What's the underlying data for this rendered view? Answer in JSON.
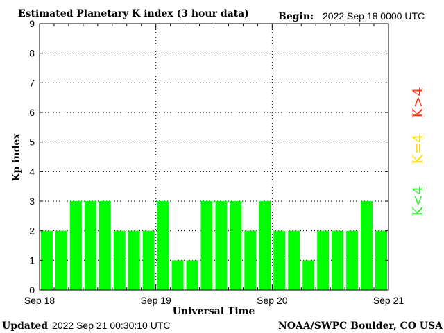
{
  "chart_data": {
    "type": "bar",
    "title": "Estimated Planetary K index (3 hour data)",
    "begin_label": "Begin:",
    "begin_value": "2022 Sep 18 0000 UTC",
    "ylabel": "Kp index",
    "xlabel": "Universal Time",
    "ylim": [
      0,
      9
    ],
    "yticks": [
      "0",
      "1",
      "2",
      "3",
      "4",
      "5",
      "6",
      "7",
      "8",
      "9"
    ],
    "xlim": [
      0,
      72
    ],
    "xticks": [
      {
        "hour": 0,
        "label": "Sep 18"
      },
      {
        "hour": 24,
        "label": "Sep 19"
      },
      {
        "hour": 48,
        "label": "Sep 20"
      },
      {
        "hour": 72,
        "label": "Sep 21"
      }
    ],
    "interval_hours": 3,
    "values": [
      2,
      2,
      3,
      3,
      3,
      2,
      2,
      2,
      3,
      1,
      1,
      3,
      3,
      3,
      2,
      3,
      2,
      2,
      1,
      2,
      2,
      2,
      3,
      2
    ],
    "bar_color": "#00ff00",
    "grid": true,
    "legend": [
      {
        "label": "K<4",
        "color": "#33ee33"
      },
      {
        "label": "K=4",
        "color": "#ffdd00"
      },
      {
        "label": "K>4",
        "color": "#ff3311"
      }
    ],
    "legend_position": "right"
  },
  "footer": {
    "updated_label": "Updated",
    "updated_value": "2022 Sep 21 00:30:10 UTC",
    "credit": "NOAA/SWPC Boulder, CO USA"
  }
}
